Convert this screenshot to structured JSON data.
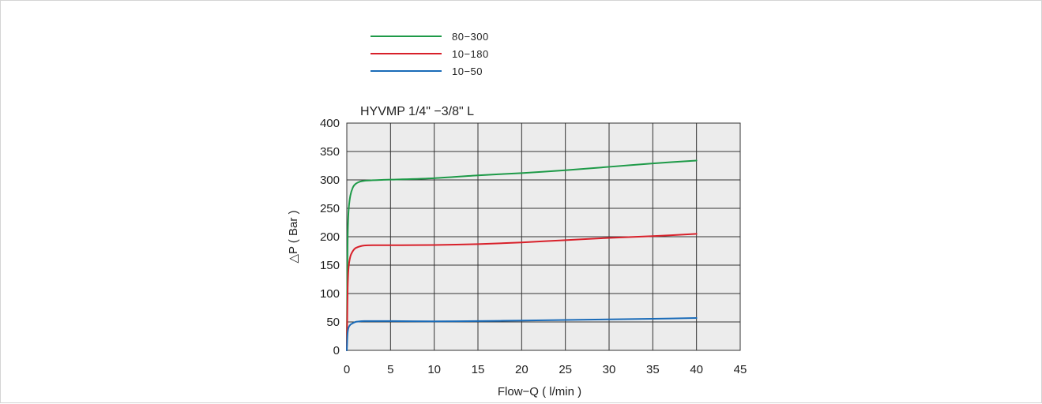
{
  "chart_data": {
    "type": "line",
    "title": "HYVMP 1/4\" −3/8\" L",
    "xlabel": "Flow−Q ( l/min )",
    "ylabel": "△P ( Bar )",
    "xlim": [
      0,
      45
    ],
    "ylim": [
      0,
      400
    ],
    "x_ticks": [
      "0",
      "5",
      "10",
      "15",
      "20",
      "25",
      "30",
      "35",
      "40",
      "45"
    ],
    "y_ticks": [
      "0",
      "50",
      "100",
      "150",
      "200",
      "250",
      "300",
      "350",
      "400"
    ],
    "grid": true,
    "legend_position": "top",
    "series": [
      {
        "name": "80−300",
        "color": "#1e9a48",
        "points": [
          [
            0,
            0
          ],
          [
            0.05,
            120
          ],
          [
            0.1,
            200
          ],
          [
            0.2,
            245
          ],
          [
            0.4,
            272
          ],
          [
            0.7,
            287
          ],
          [
            1,
            293
          ],
          [
            1.5,
            297
          ],
          [
            2,
            298.5
          ],
          [
            3,
            299.5
          ],
          [
            4,
            300
          ],
          [
            5,
            300.5
          ],
          [
            10,
            303
          ],
          [
            15,
            308
          ],
          [
            20,
            312
          ],
          [
            25,
            317
          ],
          [
            30,
            323
          ],
          [
            35,
            329
          ],
          [
            40,
            334
          ]
        ]
      },
      {
        "name": "10−180",
        "color": "#d8202a",
        "points": [
          [
            0,
            0
          ],
          [
            0.05,
            60
          ],
          [
            0.1,
            110
          ],
          [
            0.2,
            145
          ],
          [
            0.4,
            165
          ],
          [
            0.7,
            175
          ],
          [
            1,
            180
          ],
          [
            1.5,
            183
          ],
          [
            2,
            184.5
          ],
          [
            3,
            185
          ],
          [
            5,
            185
          ],
          [
            10,
            185.5
          ],
          [
            15,
            187
          ],
          [
            20,
            190
          ],
          [
            25,
            194
          ],
          [
            30,
            198
          ],
          [
            35,
            201
          ],
          [
            40,
            205
          ]
        ]
      },
      {
        "name": "10−50",
        "color": "#1a6bb8",
        "points": [
          [
            0,
            0
          ],
          [
            0.05,
            20
          ],
          [
            0.1,
            32
          ],
          [
            0.2,
            40
          ],
          [
            0.4,
            45
          ],
          [
            0.7,
            48
          ],
          [
            1,
            50
          ],
          [
            1.5,
            51
          ],
          [
            2,
            51.5
          ],
          [
            5,
            51.5
          ],
          [
            10,
            51
          ],
          [
            15,
            51.5
          ],
          [
            20,
            52.5
          ],
          [
            25,
            53.5
          ],
          [
            30,
            54.5
          ],
          [
            35,
            55.5
          ],
          [
            40,
            57
          ]
        ]
      }
    ]
  }
}
